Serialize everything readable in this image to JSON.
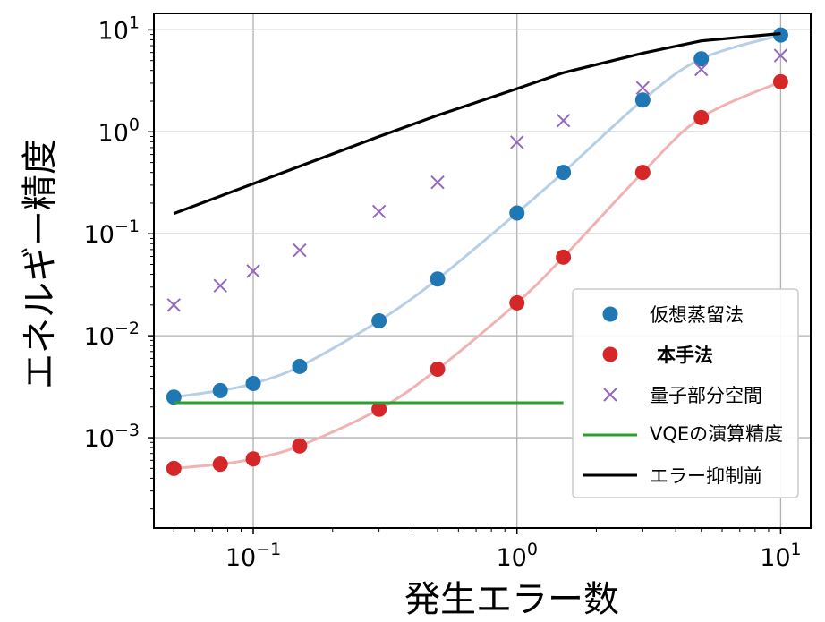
{
  "chart_data": {
    "type": "line",
    "xlabel": "発生エラー数",
    "ylabel": "エネルギー精度",
    "xscale": "log",
    "yscale": "log",
    "xlim": [
      0.042,
      13
    ],
    "ylim": [
      0.00013,
      14.5
    ],
    "grid": true,
    "legend_position": "lower-right",
    "x_ticks": [
      {
        "value": 0.1,
        "base": "10",
        "exp": "−1"
      },
      {
        "value": 1,
        "base": "10",
        "exp": "0"
      },
      {
        "value": 10,
        "base": "10",
        "exp": "1"
      }
    ],
    "y_ticks": [
      {
        "value": 0.001,
        "base": "10",
        "exp": "−3"
      },
      {
        "value": 0.01,
        "base": "10",
        "exp": "−2"
      },
      {
        "value": 0.1,
        "base": "10",
        "exp": "−1"
      },
      {
        "value": 1,
        "base": "10",
        "exp": "0"
      },
      {
        "value": 10,
        "base": "10",
        "exp": "1"
      }
    ],
    "series": [
      {
        "name": "仮想蒸留法",
        "kind": "dots-with-curve",
        "color": "#1f77b4",
        "curve_color": "#b7cfe6",
        "x": [
          0.05,
          0.075,
          0.1,
          0.15,
          0.3,
          0.5,
          1.0,
          1.5,
          3.0,
          5.0,
          10.0
        ],
        "y": [
          0.0025,
          0.0029,
          0.0034,
          0.005,
          0.014,
          0.036,
          0.16,
          0.4,
          2.05,
          5.2,
          8.9
        ]
      },
      {
        "name": "本手法",
        "kind": "dots-with-curve",
        "color": "#d62728",
        "curve_color": "#f0b2b3",
        "label_color": "#b22222",
        "x": [
          0.05,
          0.075,
          0.1,
          0.15,
          0.3,
          0.5,
          1.0,
          1.5,
          3.0,
          5.0,
          10.0
        ],
        "y": [
          0.0005,
          0.00055,
          0.00062,
          0.00083,
          0.0019,
          0.0047,
          0.021,
          0.059,
          0.4,
          1.38,
          3.1
        ]
      },
      {
        "name": "量子部分空間",
        "kind": "cross",
        "color": "#9467bd",
        "x": [
          0.05,
          0.075,
          0.1,
          0.15,
          0.3,
          0.5,
          1.0,
          1.5,
          3.0,
          5.0,
          10.0
        ],
        "y": [
          0.02,
          0.031,
          0.043,
          0.069,
          0.165,
          0.32,
          0.79,
          1.29,
          2.7,
          4.1,
          5.6
        ]
      },
      {
        "name": "VQEの演算精度",
        "kind": "hline",
        "color": "#2ca02c",
        "x": [
          0.05,
          1.5
        ],
        "y": [
          0.0022,
          0.0022
        ]
      },
      {
        "name": "エラー抑制前",
        "kind": "line",
        "color": "#000000",
        "x": [
          0.05,
          0.1,
          0.3,
          0.5,
          1.0,
          1.5,
          3.0,
          5.0,
          10.0
        ],
        "y": [
          0.158,
          0.31,
          0.9,
          1.45,
          2.65,
          3.8,
          5.9,
          7.8,
          9.2
        ]
      }
    ]
  }
}
